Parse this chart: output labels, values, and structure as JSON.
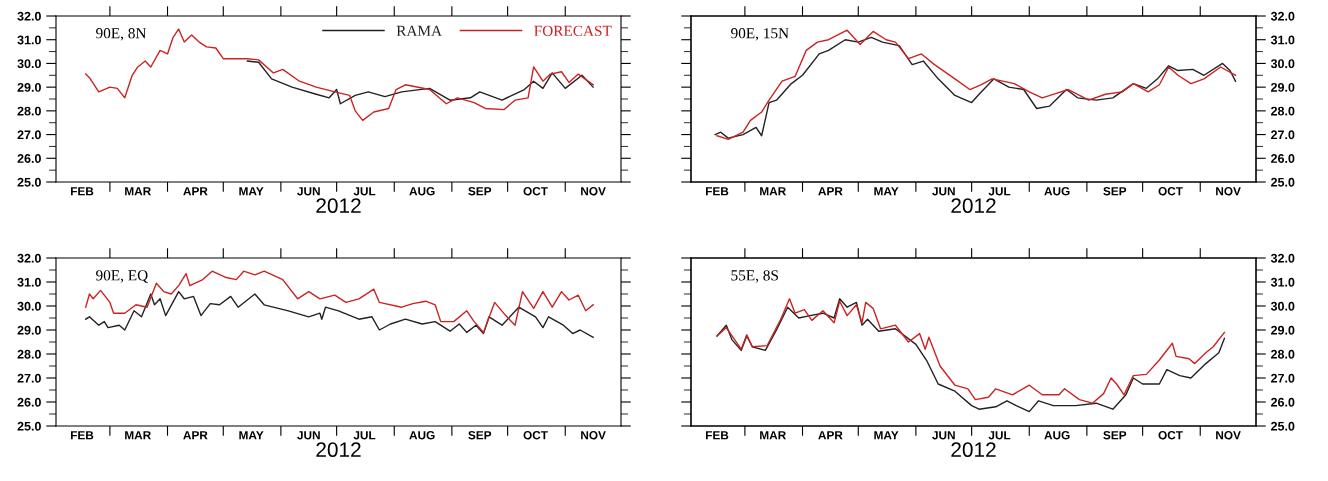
{
  "chart_data": [
    {
      "type": "line",
      "xlabel": "2012",
      "annotations": [
        "90E, 8N"
      ],
      "legend": "top right",
      "xlim": [
        "2012-02-01",
        "2012-12-01"
      ],
      "ylim": [
        25,
        32
      ],
      "yticks": [
        {
          "value": 25,
          "label": "25.0"
        },
        {
          "value": 26,
          "label": "26.0"
        },
        {
          "value": 27,
          "label": "27.0"
        },
        {
          "value": 28,
          "label": "28.0"
        },
        {
          "value": 29,
          "label": "29.0"
        },
        {
          "value": 30,
          "label": "30.0"
        },
        {
          "value": 31,
          "label": "31.0"
        },
        {
          "value": 32,
          "label": "32.0"
        }
      ],
      "xticks": [
        {
          "value": "2012-03-01",
          "label": null
        },
        {
          "value": "2012-04-01",
          "label": null
        },
        {
          "value": "2012-05-01",
          "label": null
        },
        {
          "value": "2012-06-01",
          "label": null
        },
        {
          "value": "2012-07-01",
          "label": null
        },
        {
          "value": "2012-08-01",
          "label": null
        },
        {
          "value": "2012-09-01",
          "label": null
        },
        {
          "value": "2012-10-01",
          "label": null
        },
        {
          "value": "2012-11-01",
          "label": null
        },
        {
          "value": "2012-02-15",
          "label": "FEB"
        },
        {
          "value": "2012-03-16",
          "label": "MAR"
        },
        {
          "value": "2012-04-16",
          "label": "APR"
        },
        {
          "value": "2012-05-16",
          "label": "MAY"
        },
        {
          "value": "2012-06-16",
          "label": "JUN"
        },
        {
          "value": "2012-07-16",
          "label": "JUL"
        },
        {
          "value": "2012-08-16",
          "label": "AUG"
        },
        {
          "value": "2012-09-16",
          "label": "SEP"
        },
        {
          "value": "2012-10-16",
          "label": "OCT"
        },
        {
          "value": "2012-11-16",
          "label": "NOV"
        }
      ],
      "series": [
        {
          "name": "RAMA",
          "color": "#222222",
          "x": [
            "2012-05-14",
            "2012-05-20",
            "2012-05-27",
            "2012-06-07",
            "2012-06-20",
            "2012-06-27",
            "2012-07-01",
            "2012-07-03",
            "2012-07-11",
            "2012-07-18",
            "2012-07-27",
            "2012-08-05",
            "2012-08-20",
            "2012-08-31",
            "2012-09-11",
            "2012-09-16",
            "2012-09-28",
            "2012-10-10",
            "2012-10-15",
            "2012-10-20",
            "2012-10-25",
            "2012-11-01",
            "2012-11-10",
            "2012-11-16"
          ],
          "values": [
            30.1,
            30.05,
            29.35,
            29.0,
            28.7,
            28.55,
            28.9,
            28.3,
            28.65,
            28.8,
            28.6,
            28.8,
            28.95,
            28.45,
            28.55,
            28.8,
            28.45,
            28.9,
            29.25,
            28.95,
            29.6,
            28.95,
            29.5,
            29.0
          ]
        },
        {
          "name": "FORECAST",
          "color": "#cc2222",
          "x": [
            "2012-02-17",
            "2012-02-19",
            "2012-02-24",
            "2012-03-01",
            "2012-03-05",
            "2012-03-09",
            "2012-03-13",
            "2012-03-16",
            "2012-03-20",
            "2012-03-23",
            "2012-03-28",
            "2012-04-01",
            "2012-04-04",
            "2012-04-07",
            "2012-04-10",
            "2012-04-14",
            "2012-04-18",
            "2012-04-22",
            "2012-04-27",
            "2012-05-01",
            "2012-05-14",
            "2012-05-20",
            "2012-05-28",
            "2012-06-02",
            "2012-06-11",
            "2012-06-20",
            "2012-06-30",
            "2012-07-08",
            "2012-07-11",
            "2012-07-15",
            "2012-07-21",
            "2012-07-29",
            "2012-08-02",
            "2012-08-07",
            "2012-08-20",
            "2012-08-29",
            "2012-09-04",
            "2012-09-13",
            "2012-09-19",
            "2012-09-29",
            "2012-10-05",
            "2012-10-12",
            "2012-10-15",
            "2012-10-20",
            "2012-10-24",
            "2012-10-30",
            "2012-11-03",
            "2012-11-08",
            "2012-11-16"
          ],
          "values": [
            29.55,
            29.4,
            28.8,
            29.0,
            28.95,
            28.55,
            29.5,
            29.85,
            30.1,
            29.85,
            30.55,
            30.4,
            31.1,
            31.45,
            30.9,
            31.2,
            30.9,
            30.7,
            30.65,
            30.2,
            30.2,
            30.15,
            29.6,
            29.75,
            29.25,
            29.0,
            28.8,
            28.65,
            28.0,
            27.6,
            27.95,
            28.1,
            28.9,
            29.1,
            28.9,
            28.3,
            28.55,
            28.35,
            28.1,
            28.05,
            28.45,
            28.55,
            29.85,
            29.25,
            29.55,
            29.65,
            29.2,
            29.55,
            29.1
          ]
        }
      ]
    },
    {
      "type": "line",
      "xlabel": "2012",
      "annotations": [
        "90E, 15N"
      ],
      "xlim": [
        "2012-02-01",
        "2012-12-01"
      ],
      "y2lim": [
        25,
        32
      ],
      "y2ticks": [
        {
          "value": 25,
          "label": "25.0"
        },
        {
          "value": 26,
          "label": "26.0"
        },
        {
          "value": 27,
          "label": "27.0"
        },
        {
          "value": 28,
          "label": "28.0"
        },
        {
          "value": 29,
          "label": "29.0"
        },
        {
          "value": 30,
          "label": "30.0"
        },
        {
          "value": 31,
          "label": "31.0"
        },
        {
          "value": 32,
          "label": "32.0"
        }
      ],
      "xticks": [
        {
          "value": "2012-03-01",
          "label": null
        },
        {
          "value": "2012-04-01",
          "label": null
        },
        {
          "value": "2012-05-01",
          "label": null
        },
        {
          "value": "2012-06-01",
          "label": null
        },
        {
          "value": "2012-07-01",
          "label": null
        },
        {
          "value": "2012-08-01",
          "label": null
        },
        {
          "value": "2012-09-01",
          "label": null
        },
        {
          "value": "2012-10-01",
          "label": null
        },
        {
          "value": "2012-11-01",
          "label": null
        },
        {
          "value": "2012-02-15",
          "label": "FEB"
        },
        {
          "value": "2012-03-16",
          "label": "MAR"
        },
        {
          "value": "2012-04-16",
          "label": "APR"
        },
        {
          "value": "2012-05-16",
          "label": "MAY"
        },
        {
          "value": "2012-06-16",
          "label": "JUN"
        },
        {
          "value": "2012-07-16",
          "label": "JUL"
        },
        {
          "value": "2012-08-16",
          "label": "AUG"
        },
        {
          "value": "2012-09-16",
          "label": "SEP"
        },
        {
          "value": "2012-10-16",
          "label": "OCT"
        },
        {
          "value": "2012-11-16",
          "label": "NOV"
        }
      ],
      "series": [
        {
          "color": "#222222",
          "axis": "y2",
          "x": [
            "2012-02-14",
            "2012-02-17",
            "2012-02-21",
            "2012-02-29",
            "2012-03-07",
            "2012-03-10",
            "2012-03-14",
            "2012-03-18",
            "2012-03-26",
            "2012-04-01",
            "2012-04-10",
            "2012-04-15",
            "2012-04-24",
            "2012-05-01",
            "2012-05-08",
            "2012-05-14",
            "2012-05-23",
            "2012-05-30",
            "2012-06-05",
            "2012-06-13",
            "2012-06-22",
            "2012-07-01",
            "2012-07-05",
            "2012-07-13",
            "2012-07-21",
            "2012-07-29",
            "2012-08-05",
            "2012-08-12",
            "2012-08-21",
            "2012-08-27",
            "2012-09-06",
            "2012-09-15",
            "2012-09-26",
            "2012-10-03",
            "2012-10-09",
            "2012-10-15",
            "2012-10-20",
            "2012-10-28",
            "2012-11-03",
            "2012-11-13",
            "2012-11-17",
            "2012-11-20"
          ],
          "values": [
            27.0,
            27.1,
            26.85,
            27.0,
            27.3,
            26.95,
            28.35,
            28.45,
            29.15,
            29.5,
            30.4,
            30.55,
            31.0,
            30.9,
            31.1,
            30.9,
            30.75,
            29.95,
            30.1,
            29.35,
            28.65,
            28.35,
            28.7,
            29.35,
            29.0,
            28.9,
            28.1,
            28.2,
            28.9,
            28.55,
            28.45,
            28.55,
            29.15,
            28.95,
            29.35,
            29.9,
            29.7,
            29.75,
            29.5,
            30.0,
            29.7,
            29.25
          ]
        },
        {
          "color": "#cc2222",
          "axis": "y2",
          "x": [
            "2012-02-15",
            "2012-02-21",
            "2012-02-29",
            "2012-03-04",
            "2012-03-10",
            "2012-03-14",
            "2012-03-21",
            "2012-03-28",
            "2012-04-03",
            "2012-04-09",
            "2012-04-15",
            "2012-04-25",
            "2012-05-02",
            "2012-05-09",
            "2012-05-16",
            "2012-05-21",
            "2012-05-28",
            "2012-06-04",
            "2012-06-11",
            "2012-06-22",
            "2012-06-30",
            "2012-07-06",
            "2012-07-12",
            "2012-07-24",
            "2012-08-01",
            "2012-08-08",
            "2012-08-16",
            "2012-08-22",
            "2012-09-02",
            "2012-09-11",
            "2012-09-20",
            "2012-09-26",
            "2012-10-04",
            "2012-10-10",
            "2012-10-15",
            "2012-10-20",
            "2012-10-27",
            "2012-11-03",
            "2012-11-12",
            "2012-11-20"
          ],
          "values": [
            26.95,
            26.8,
            27.1,
            27.6,
            27.95,
            28.45,
            29.25,
            29.45,
            30.55,
            30.9,
            31.0,
            31.4,
            30.8,
            31.35,
            31.0,
            30.9,
            30.2,
            30.4,
            29.95,
            29.35,
            28.9,
            29.1,
            29.35,
            29.15,
            28.8,
            28.55,
            28.75,
            28.9,
            28.45,
            28.7,
            28.8,
            29.15,
            28.8,
            29.1,
            29.85,
            29.5,
            29.15,
            29.35,
            29.85,
            29.5
          ]
        }
      ]
    },
    {
      "type": "line",
      "xlabel": "2012",
      "annotations": [
        "90E, EQ"
      ],
      "xlim": [
        "2012-02-01",
        "2012-12-01"
      ],
      "ylim": [
        25,
        32
      ],
      "yticks": [
        {
          "value": 25,
          "label": "25.0"
        },
        {
          "value": 26,
          "label": "26.0"
        },
        {
          "value": 27,
          "label": "27.0"
        },
        {
          "value": 28,
          "label": "28.0"
        },
        {
          "value": 29,
          "label": "29.0"
        },
        {
          "value": 30,
          "label": "30.0"
        },
        {
          "value": 31,
          "label": "31.0"
        },
        {
          "value": 32,
          "label": "32.0"
        }
      ],
      "xticks": [
        {
          "value": "2012-03-01",
          "label": null
        },
        {
          "value": "2012-04-01",
          "label": null
        },
        {
          "value": "2012-05-01",
          "label": null
        },
        {
          "value": "2012-06-01",
          "label": null
        },
        {
          "value": "2012-07-01",
          "label": null
        },
        {
          "value": "2012-08-01",
          "label": null
        },
        {
          "value": "2012-09-01",
          "label": null
        },
        {
          "value": "2012-10-01",
          "label": null
        },
        {
          "value": "2012-11-01",
          "label": null
        },
        {
          "value": "2012-02-15",
          "label": "FEB"
        },
        {
          "value": "2012-03-16",
          "label": "MAR"
        },
        {
          "value": "2012-04-16",
          "label": "APR"
        },
        {
          "value": "2012-05-16",
          "label": "MAY"
        },
        {
          "value": "2012-06-16",
          "label": "JUN"
        },
        {
          "value": "2012-07-16",
          "label": "JUL"
        },
        {
          "value": "2012-08-16",
          "label": "AUG"
        },
        {
          "value": "2012-09-16",
          "label": "SEP"
        },
        {
          "value": "2012-10-16",
          "label": "OCT"
        },
        {
          "value": "2012-11-16",
          "label": "NOV"
        }
      ],
      "series": [
        {
          "color": "#222222",
          "x": [
            "2012-02-17",
            "2012-02-19",
            "2012-02-24",
            "2012-02-27",
            "2012-02-29",
            "2012-03-06",
            "2012-03-09",
            "2012-03-14",
            "2012-03-18",
            "2012-03-23",
            "2012-03-25",
            "2012-03-28",
            "2012-03-31",
            "2012-04-07",
            "2012-04-10",
            "2012-04-15",
            "2012-04-19",
            "2012-04-24",
            "2012-04-29",
            "2012-05-05",
            "2012-05-09",
            "2012-05-18",
            "2012-05-23",
            "2012-06-05",
            "2012-06-16",
            "2012-06-22",
            "2012-06-23",
            "2012-06-25",
            "2012-07-02",
            "2012-07-13",
            "2012-07-20",
            "2012-07-24",
            "2012-07-30",
            "2012-08-07",
            "2012-08-16",
            "2012-08-23",
            "2012-08-31",
            "2012-09-05",
            "2012-09-09",
            "2012-09-14",
            "2012-09-18",
            "2012-09-21",
            "2012-09-28",
            "2012-10-07",
            "2012-10-16",
            "2012-10-20",
            "2012-10-23",
            "2012-10-31",
            "2012-11-05",
            "2012-11-09",
            "2012-11-16"
          ],
          "values": [
            29.45,
            29.55,
            29.2,
            29.35,
            29.1,
            29.2,
            29.0,
            29.8,
            29.55,
            30.5,
            30.05,
            30.3,
            29.6,
            30.6,
            30.3,
            30.4,
            29.6,
            30.1,
            30.05,
            30.4,
            29.95,
            30.5,
            30.05,
            29.8,
            29.55,
            29.7,
            29.45,
            29.95,
            29.8,
            29.45,
            29.55,
            29.0,
            29.25,
            29.45,
            29.25,
            29.35,
            28.95,
            29.25,
            28.9,
            29.2,
            28.85,
            29.55,
            29.2,
            29.95,
            29.55,
            29.1,
            29.55,
            29.2,
            28.85,
            29.0,
            28.7
          ]
        },
        {
          "color": "#cc2222",
          "x": [
            "2012-02-17",
            "2012-02-19",
            "2012-02-21",
            "2012-02-25",
            "2012-03-01",
            "2012-03-03",
            "2012-03-09",
            "2012-03-15",
            "2012-03-21",
            "2012-03-26",
            "2012-03-30",
            "2012-04-03",
            "2012-04-07",
            "2012-04-11",
            "2012-04-13",
            "2012-04-20",
            "2012-04-25",
            "2012-05-02",
            "2012-05-08",
            "2012-05-12",
            "2012-05-18",
            "2012-05-23",
            "2012-06-02",
            "2012-06-10",
            "2012-06-16",
            "2012-06-22",
            "2012-06-30",
            "2012-07-06",
            "2012-07-13",
            "2012-07-21",
            "2012-07-24",
            "2012-08-05",
            "2012-08-11",
            "2012-08-18",
            "2012-08-23",
            "2012-08-26",
            "2012-09-02",
            "2012-09-09",
            "2012-09-13",
            "2012-09-18",
            "2012-09-24",
            "2012-09-30",
            "2012-10-05",
            "2012-10-09",
            "2012-10-15",
            "2012-10-20",
            "2012-10-25",
            "2012-10-30",
            "2012-11-03",
            "2012-11-08",
            "2012-11-12",
            "2012-11-16"
          ],
          "values": [
            29.95,
            30.5,
            30.3,
            30.65,
            30.15,
            29.7,
            29.7,
            30.05,
            29.95,
            30.95,
            30.6,
            30.5,
            30.85,
            31.35,
            30.85,
            31.1,
            31.45,
            31.2,
            31.1,
            31.45,
            31.3,
            31.45,
            31.1,
            30.3,
            30.6,
            30.3,
            30.45,
            30.15,
            30.3,
            30.7,
            30.15,
            29.95,
            30.1,
            30.2,
            30.05,
            29.35,
            29.35,
            29.8,
            29.35,
            28.9,
            30.15,
            29.6,
            29.2,
            30.6,
            29.9,
            30.6,
            29.95,
            30.6,
            30.25,
            30.45,
            29.8,
            30.05
          ]
        }
      ]
    },
    {
      "type": "line",
      "xlabel": "2012",
      "annotations": [
        "55E, 8S"
      ],
      "xlim": [
        "2012-02-01",
        "2012-12-01"
      ],
      "y2lim": [
        25,
        32
      ],
      "y2ticks": [
        {
          "value": 25,
          "label": "25.0"
        },
        {
          "value": 26,
          "label": "26.0"
        },
        {
          "value": 27,
          "label": "27.0"
        },
        {
          "value": 28,
          "label": "28.0"
        },
        {
          "value": 29,
          "label": "29.0"
        },
        {
          "value": 30,
          "label": "30.0"
        },
        {
          "value": 31,
          "label": "31.0"
        },
        {
          "value": 32,
          "label": "32.0"
        }
      ],
      "xticks": [
        {
          "value": "2012-03-01",
          "label": null
        },
        {
          "value": "2012-04-01",
          "label": null
        },
        {
          "value": "2012-05-01",
          "label": null
        },
        {
          "value": "2012-06-01",
          "label": null
        },
        {
          "value": "2012-07-01",
          "label": null
        },
        {
          "value": "2012-08-01",
          "label": null
        },
        {
          "value": "2012-09-01",
          "label": null
        },
        {
          "value": "2012-10-01",
          "label": null
        },
        {
          "value": "2012-11-01",
          "label": null
        },
        {
          "value": "2012-02-15",
          "label": "FEB"
        },
        {
          "value": "2012-03-16",
          "label": "MAR"
        },
        {
          "value": "2012-04-16",
          "label": "APR"
        },
        {
          "value": "2012-05-16",
          "label": "MAY"
        },
        {
          "value": "2012-06-16",
          "label": "JUN"
        },
        {
          "value": "2012-07-16",
          "label": "JUL"
        },
        {
          "value": "2012-08-16",
          "label": "AUG"
        },
        {
          "value": "2012-09-16",
          "label": "SEP"
        },
        {
          "value": "2012-10-16",
          "label": "OCT"
        },
        {
          "value": "2012-11-16",
          "label": "NOV"
        }
      ],
      "series": [
        {
          "color": "#222222",
          "axis": "y2",
          "x": [
            "2012-02-15",
            "2012-02-20",
            "2012-02-23",
            "2012-02-28",
            "2012-03-02",
            "2012-03-05",
            "2012-03-12",
            "2012-03-18",
            "2012-03-24",
            "2012-03-30",
            "2012-04-05",
            "2012-04-12",
            "2012-04-18",
            "2012-04-21",
            "2012-04-25",
            "2012-04-30",
            "2012-05-03",
            "2012-05-06",
            "2012-05-12",
            "2012-05-21",
            "2012-06-01",
            "2012-06-07",
            "2012-06-13",
            "2012-06-22",
            "2012-07-01",
            "2012-07-05",
            "2012-07-14",
            "2012-07-20",
            "2012-07-25",
            "2012-08-01",
            "2012-08-06",
            "2012-08-14",
            "2012-08-26",
            "2012-09-06",
            "2012-09-15",
            "2012-09-22",
            "2012-09-26",
            "2012-10-01",
            "2012-10-10",
            "2012-10-14",
            "2012-10-21",
            "2012-10-27",
            "2012-11-04",
            "2012-11-11",
            "2012-11-14"
          ],
          "values": [
            28.75,
            29.2,
            28.6,
            28.15,
            28.75,
            28.3,
            28.15,
            29.0,
            29.95,
            29.5,
            29.6,
            29.7,
            29.5,
            30.3,
            29.95,
            30.15,
            29.2,
            29.45,
            28.95,
            29.05,
            28.4,
            27.7,
            26.75,
            26.45,
            25.85,
            25.7,
            25.8,
            26.05,
            25.85,
            25.6,
            26.05,
            25.85,
            25.85,
            25.95,
            25.7,
            26.3,
            27.0,
            26.75,
            26.75,
            27.35,
            27.1,
            27.0,
            27.6,
            28.05,
            28.65
          ]
        },
        {
          "color": "#cc2222",
          "axis": "y2",
          "x": [
            "2012-02-15",
            "2012-02-20",
            "2012-02-28",
            "2012-03-02",
            "2012-03-05",
            "2012-03-13",
            "2012-03-20",
            "2012-03-25",
            "2012-03-28",
            "2012-04-02",
            "2012-04-06",
            "2012-04-12",
            "2012-04-18",
            "2012-04-21",
            "2012-04-25",
            "2012-04-30",
            "2012-05-03",
            "2012-05-05",
            "2012-05-09",
            "2012-05-13",
            "2012-05-21",
            "2012-05-28",
            "2012-06-03",
            "2012-06-06",
            "2012-06-08",
            "2012-06-14",
            "2012-06-22",
            "2012-06-29",
            "2012-07-03",
            "2012-07-10",
            "2012-07-14",
            "2012-07-23",
            "2012-08-01",
            "2012-08-08",
            "2012-08-17",
            "2012-08-20",
            "2012-08-28",
            "2012-09-04",
            "2012-09-10",
            "2012-09-14",
            "2012-09-17",
            "2012-09-21",
            "2012-09-26",
            "2012-10-03",
            "2012-10-10",
            "2012-10-17",
            "2012-10-19",
            "2012-10-26",
            "2012-10-29",
            "2012-11-04",
            "2012-11-08",
            "2012-11-14"
          ],
          "values": [
            28.75,
            29.1,
            28.2,
            28.8,
            28.3,
            28.35,
            29.4,
            30.3,
            29.7,
            29.85,
            29.4,
            29.8,
            29.3,
            30.2,
            29.6,
            30.05,
            29.3,
            30.15,
            29.9,
            29.05,
            29.2,
            28.5,
            28.85,
            28.2,
            28.7,
            27.5,
            26.7,
            26.55,
            26.1,
            26.2,
            26.55,
            26.3,
            26.7,
            26.3,
            26.3,
            26.55,
            26.1,
            25.95,
            26.35,
            27.0,
            26.75,
            26.3,
            27.1,
            27.15,
            27.75,
            28.45,
            27.9,
            27.8,
            27.6,
            28.05,
            28.3,
            28.9
          ]
        }
      ]
    }
  ]
}
